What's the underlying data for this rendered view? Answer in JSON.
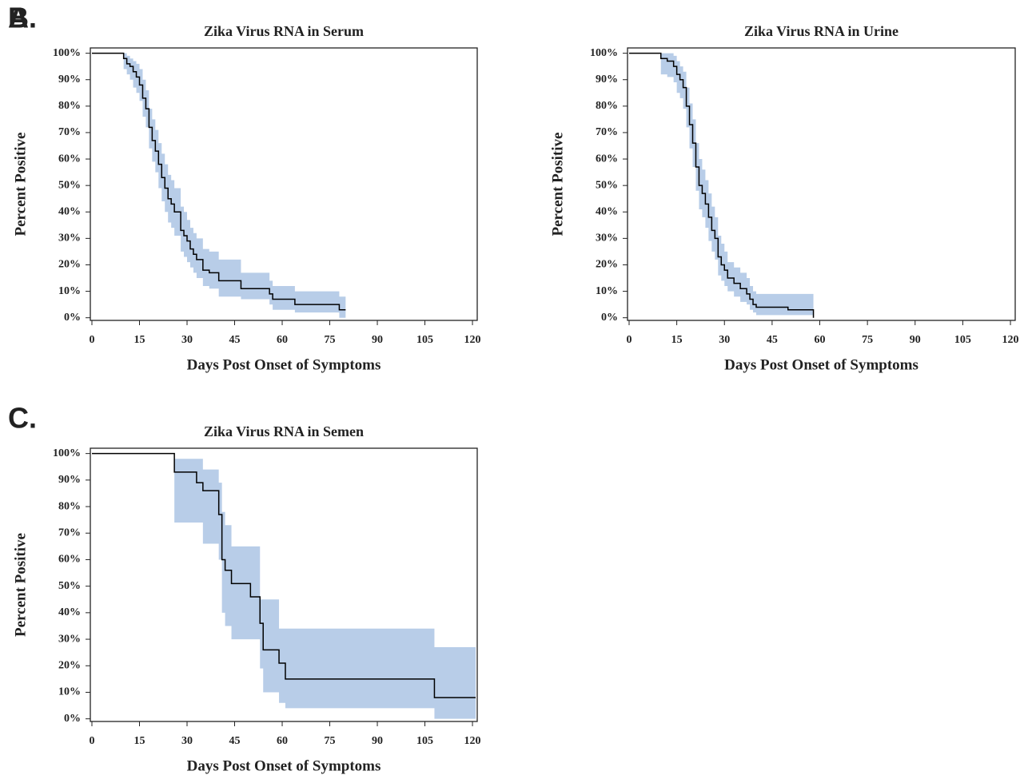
{
  "chart_data": [
    {
      "type": "step",
      "panel_label": "A.",
      "title": "Zika Virus RNA in Serum",
      "x_label": "Days Post Onset of Symptoms",
      "y_label": "Percent Positive",
      "color": "#000000",
      "band_color": "#b8cde8",
      "x": [
        0,
        10,
        11,
        12,
        13,
        14,
        15,
        16,
        17,
        18,
        19,
        20,
        21,
        22,
        23,
        24,
        25,
        26,
        28,
        29,
        30,
        31,
        32,
        33,
        35,
        37,
        40,
        47,
        56,
        57,
        64,
        78,
        80
      ],
      "values": [
        100,
        98,
        96,
        95,
        93,
        91,
        88,
        83,
        79,
        72,
        67,
        63,
        58,
        53,
        49,
        45,
        43,
        40,
        33,
        31,
        29,
        26,
        24,
        22,
        18,
        17,
        14,
        11,
        9,
        7,
        5,
        3,
        3
      ],
      "lower": [
        100,
        94,
        92,
        90,
        87,
        85,
        82,
        76,
        72,
        64,
        59,
        55,
        49,
        44,
        40,
        36,
        34,
        31,
        25,
        23,
        21,
        19,
        17,
        15,
        12,
        11,
        8,
        7,
        5,
        3,
        2,
        0,
        0
      ],
      "upper": [
        100,
        100,
        99,
        98,
        97,
        96,
        94,
        90,
        86,
        79,
        75,
        71,
        66,
        62,
        58,
        54,
        52,
        49,
        42,
        40,
        37,
        34,
        32,
        30,
        26,
        25,
        22,
        17,
        14,
        12,
        10,
        8,
        8
      ],
      "xlim": [
        -0.5,
        121.5
      ],
      "ylim": [
        -1,
        102
      ],
      "xticks": [
        0,
        15,
        30,
        45,
        60,
        75,
        90,
        105,
        120
      ],
      "yticks": [
        {
          "value": 0,
          "label": "0%"
        },
        {
          "value": 10,
          "label": "10%"
        },
        {
          "value": 20,
          "label": "20%"
        },
        {
          "value": 30,
          "label": "30%"
        },
        {
          "value": 40,
          "label": "40%"
        },
        {
          "value": 50,
          "label": "50%"
        },
        {
          "value": 60,
          "label": "60%"
        },
        {
          "value": 70,
          "label": "70%"
        },
        {
          "value": 80,
          "label": "80%"
        },
        {
          "value": 90,
          "label": "90%"
        },
        {
          "value": 100,
          "label": "100%"
        }
      ]
    },
    {
      "type": "step",
      "panel_label": "B.",
      "title": "Zika Virus RNA in Urine",
      "x_label": "Days Post Onset of Symptoms",
      "y_label": "Percent Positive",
      "color": "#000000",
      "band_color": "#b8cde8",
      "x": [
        0,
        10,
        12,
        14,
        15,
        16,
        17,
        18,
        19,
        20,
        21,
        22,
        23,
        24,
        25,
        26,
        27,
        28,
        29,
        30,
        31,
        33,
        35,
        37,
        38,
        39,
        40,
        50,
        58
      ],
      "values": [
        100,
        98,
        97,
        95,
        92,
        90,
        87,
        80,
        73,
        66,
        57,
        50,
        47,
        43,
        38,
        33,
        30,
        23,
        20,
        18,
        15,
        13,
        11,
        9,
        7,
        5,
        4,
        3,
        0
      ],
      "lower": [
        100,
        92,
        91,
        89,
        85,
        83,
        79,
        72,
        64,
        57,
        48,
        41,
        38,
        34,
        29,
        25,
        22,
        16,
        14,
        12,
        10,
        8,
        6,
        5,
        3,
        2,
        1,
        1,
        0
      ],
      "upper": [
        100,
        100,
        100,
        99,
        97,
        95,
        93,
        87,
        81,
        75,
        66,
        60,
        56,
        52,
        47,
        42,
        38,
        31,
        28,
        25,
        21,
        19,
        17,
        15,
        12,
        10,
        9,
        9,
        9
      ],
      "xlim": [
        -0.5,
        121.5
      ],
      "ylim": [
        -1,
        102
      ],
      "xticks": [
        0,
        15,
        30,
        45,
        60,
        75,
        90,
        105,
        120
      ],
      "yticks": [
        {
          "value": 0,
          "label": "0%"
        },
        {
          "value": 10,
          "label": "10%"
        },
        {
          "value": 20,
          "label": "20%"
        },
        {
          "value": 30,
          "label": "30%"
        },
        {
          "value": 40,
          "label": "40%"
        },
        {
          "value": 50,
          "label": "50%"
        },
        {
          "value": 60,
          "label": "60%"
        },
        {
          "value": 70,
          "label": "70%"
        },
        {
          "value": 80,
          "label": "80%"
        },
        {
          "value": 90,
          "label": "90%"
        },
        {
          "value": 100,
          "label": "100%"
        }
      ]
    },
    {
      "type": "step",
      "panel_label": "C.",
      "title": "Zika Virus RNA in Semen",
      "x_label": "Days Post Onset of Symptoms",
      "y_label": "Percent Positive",
      "color": "#000000",
      "band_color": "#b8cde8",
      "x": [
        0,
        26,
        33,
        35,
        40,
        41,
        42,
        44,
        50,
        53,
        54,
        59,
        61,
        108,
        121
      ],
      "values": [
        100,
        93,
        89,
        86,
        77,
        60,
        56,
        51,
        46,
        36,
        26,
        21,
        15,
        8,
        8
      ],
      "lower": [
        100,
        74,
        74,
        66,
        60,
        40,
        35,
        30,
        30,
        19,
        10,
        6,
        4,
        0,
        0
      ],
      "upper": [
        100,
        98,
        98,
        94,
        89,
        78,
        73,
        65,
        65,
        45,
        45,
        34,
        34,
        27,
        27
      ],
      "xlim": [
        -0.5,
        121.5
      ],
      "ylim": [
        -1,
        102
      ],
      "xticks": [
        0,
        15,
        30,
        45,
        60,
        75,
        90,
        105,
        120
      ],
      "yticks": [
        {
          "value": 0,
          "label": "0%"
        },
        {
          "value": 10,
          "label": "10%"
        },
        {
          "value": 20,
          "label": "20%"
        },
        {
          "value": 30,
          "label": "30%"
        },
        {
          "value": 40,
          "label": "40%"
        },
        {
          "value": 50,
          "label": "50%"
        },
        {
          "value": 60,
          "label": "60%"
        },
        {
          "value": 70,
          "label": "70%"
        },
        {
          "value": 80,
          "label": "80%"
        },
        {
          "value": 90,
          "label": "90%"
        },
        {
          "value": 100,
          "label": "100%"
        }
      ]
    }
  ]
}
